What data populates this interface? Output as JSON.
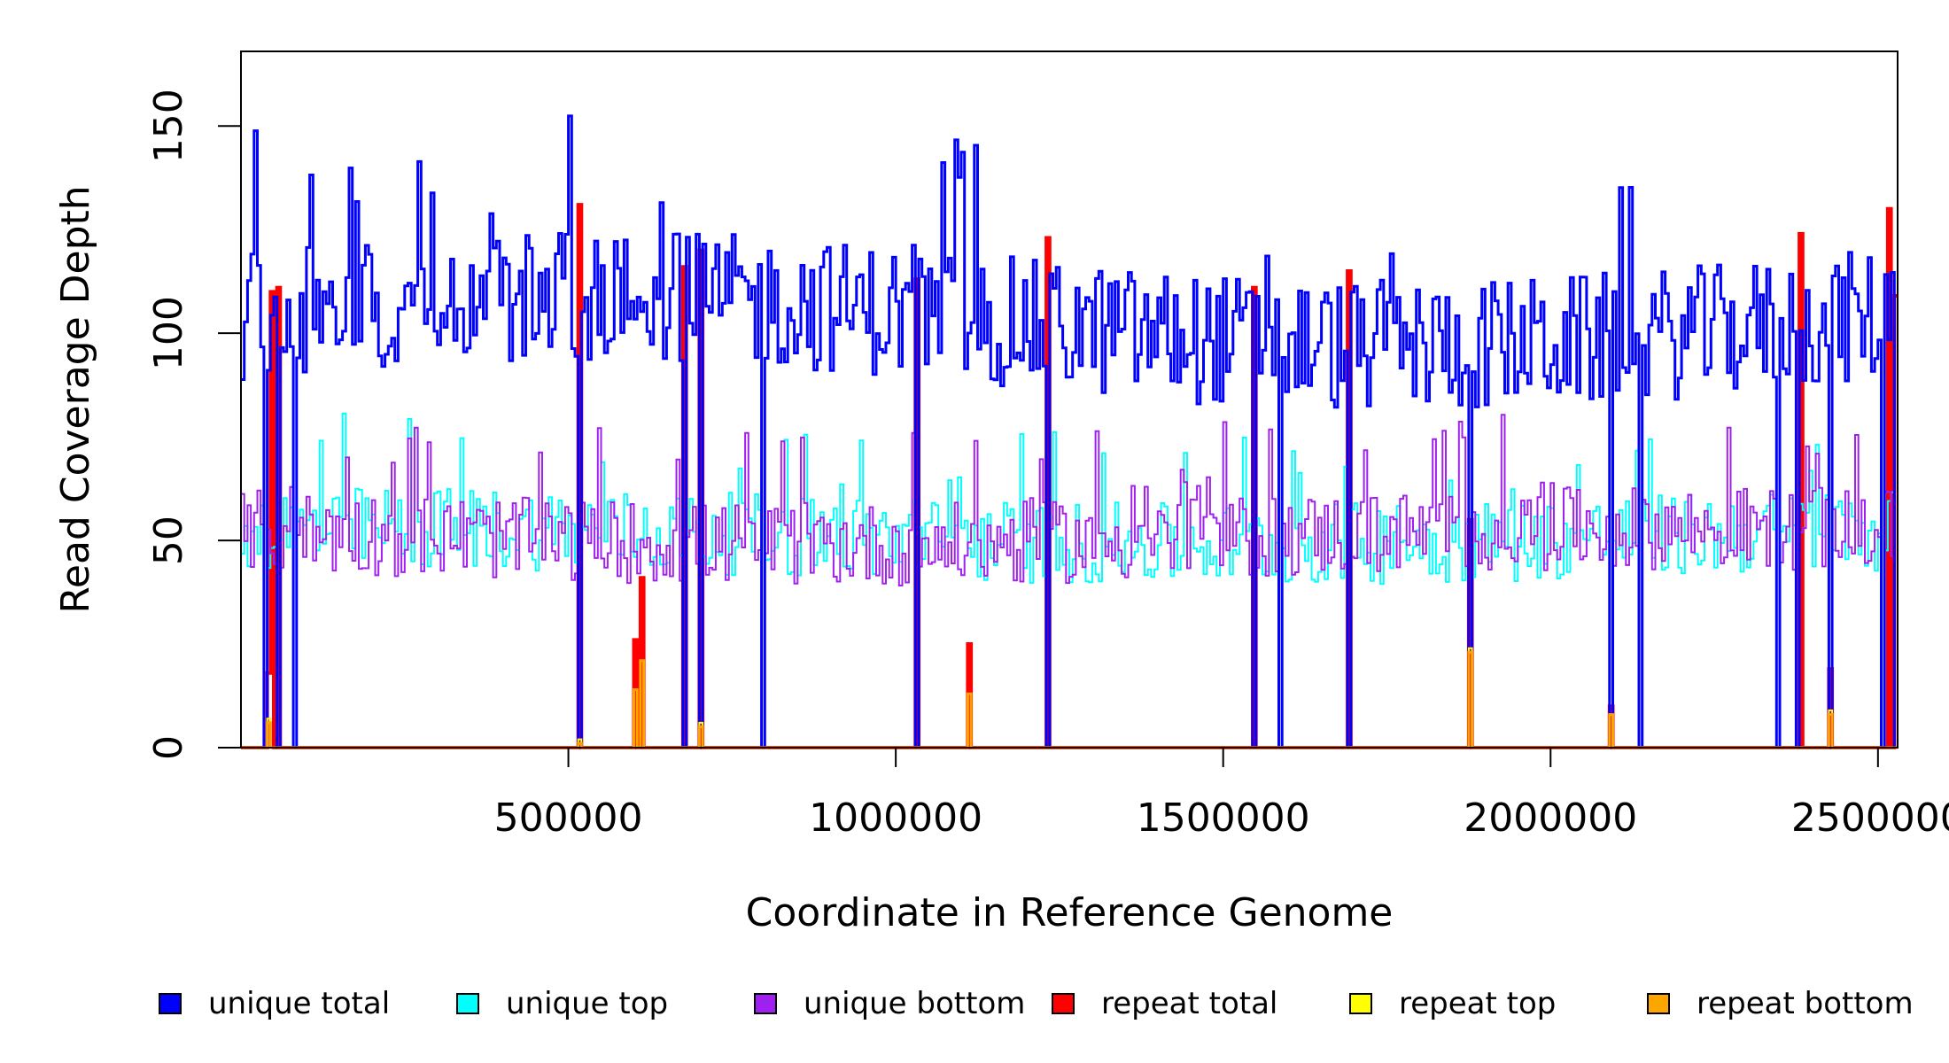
{
  "chart_data": {
    "type": "line",
    "title": "",
    "xlabel": "Coordinate in Reference Genome",
    "ylabel": "Read Coverage Depth",
    "xlim": [
      0,
      2530000
    ],
    "ylim": [
      0,
      168
    ],
    "xticks": [
      500000,
      1000000,
      1500000,
      2000000,
      2500000
    ],
    "xtick_labels": [
      "500000",
      "1000000",
      "1500000",
      "2000000",
      "2500000"
    ],
    "yticks": [
      0,
      50,
      100,
      150
    ],
    "ytick_labels": [
      "0",
      "50",
      "100",
      "150"
    ],
    "grid": false,
    "legend_position": "bottom",
    "bin_width": 5000,
    "series": [
      {
        "key": "unique_total",
        "name": "unique total",
        "color": "#0000ff",
        "mean": 103,
        "spread": 16
      },
      {
        "key": "unique_top",
        "name": "unique top",
        "color": "#00ffff",
        "mean": 51,
        "spread": 10
      },
      {
        "key": "unique_bottom",
        "name": "unique bottom",
        "color": "#a020f0",
        "mean": 51,
        "spread": 10
      },
      {
        "key": "repeat_total",
        "name": "repeat total",
        "color": "#ff0000",
        "mean": 0,
        "spread": 0
      },
      {
        "key": "repeat_top",
        "name": "repeat top",
        "color": "#ffff00",
        "mean": 0,
        "spread": 0
      },
      {
        "key": "repeat_bottom",
        "name": "repeat bottom",
        "color": "#ffa500",
        "mean": 0,
        "spread": 0
      }
    ],
    "coverage_gaps": [
      38000,
      55000,
      80000,
      515000,
      675000,
      700000,
      795000,
      1033000,
      1230000,
      1545000,
      1588000,
      1690000,
      1877000,
      2090000,
      2135000,
      2345000,
      2375000,
      2425000,
      2508000,
      2528000
    ],
    "repeat_peaks": [
      {
        "x": 40000,
        "total": 18,
        "top": 7,
        "bottom": 6
      },
      {
        "x": 48000,
        "total": 110,
        "top": 0,
        "bottom": 0
      },
      {
        "x": 58000,
        "total": 111,
        "top": 0,
        "bottom": 0
      },
      {
        "x": 515000,
        "total": 131,
        "top": 2,
        "bottom": 1
      },
      {
        "x": 603000,
        "total": 26,
        "top": 14,
        "bottom": 14
      },
      {
        "x": 610000,
        "total": 41,
        "top": 21,
        "bottom": 21
      },
      {
        "x": 677000,
        "total": 116,
        "top": 0,
        "bottom": 0
      },
      {
        "x": 700000,
        "total": 120,
        "top": 6,
        "bottom": 5
      },
      {
        "x": 1033000,
        "total": 113,
        "top": 0,
        "bottom": 0
      },
      {
        "x": 1110000,
        "total": 25,
        "top": 13,
        "bottom": 13
      },
      {
        "x": 1230000,
        "total": 123,
        "top": 0,
        "bottom": 0
      },
      {
        "x": 1545000,
        "total": 111,
        "top": 0,
        "bottom": 0
      },
      {
        "x": 1690000,
        "total": 115,
        "top": 0,
        "bottom": 0
      },
      {
        "x": 1877000,
        "total": 55,
        "top": 24,
        "bottom": 23
      },
      {
        "x": 2093000,
        "total": 10,
        "top": 8,
        "bottom": 8
      },
      {
        "x": 2380000,
        "total": 124,
        "top": 0,
        "bottom": 0
      },
      {
        "x": 2428000,
        "total": 19,
        "top": 9,
        "bottom": 8
      },
      {
        "x": 2515000,
        "total": 130,
        "top": 0,
        "bottom": 0
      },
      {
        "x": 2528000,
        "total": 109,
        "top": 0,
        "bottom": 0
      }
    ]
  }
}
